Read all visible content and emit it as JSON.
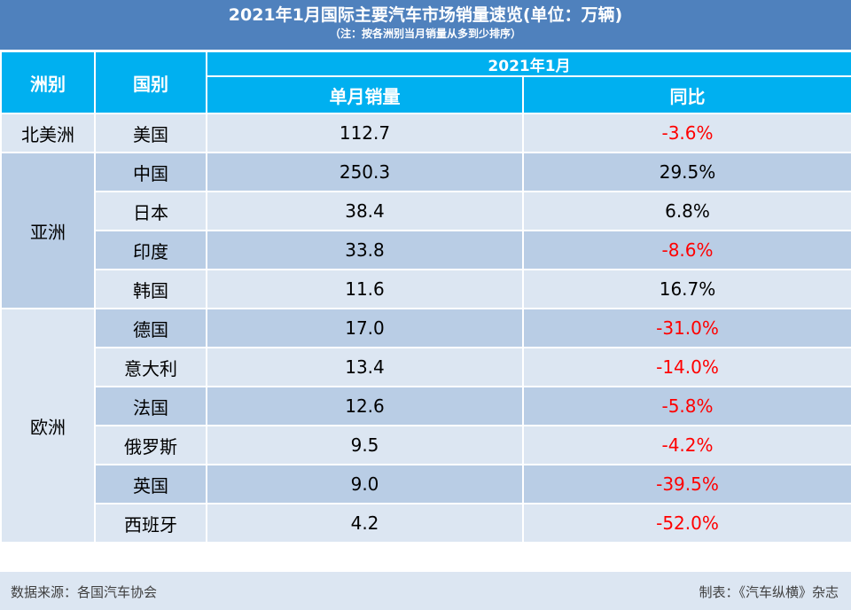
{
  "title": "2021年1月国际主要汽车市场销量速览(单位：万辆)",
  "subtitle": "（注：按各洲别当月销量从多到少排序）",
  "headers": {
    "continent": "洲别",
    "country": "国别",
    "period": "2021年1月",
    "monthly_sales": "单月销量",
    "yoy": "同比"
  },
  "groups": [
    {
      "name": "北美洲",
      "rows": [
        {
          "country": "美国",
          "sales": "112.7",
          "yoy": "-3.6%"
        }
      ]
    },
    {
      "name": "亚洲",
      "rows": [
        {
          "country": "中国",
          "sales": "250.3",
          "yoy": "29.5%"
        },
        {
          "country": "日本",
          "sales": "38.4",
          "yoy": "6.8%"
        },
        {
          "country": "印度",
          "sales": "33.8",
          "yoy": "-8.6%"
        },
        {
          "country": "韩国",
          "sales": "11.6",
          "yoy": "16.7%"
        }
      ]
    },
    {
      "name": "欧洲",
      "rows": [
        {
          "country": "德国",
          "sales": "17.0",
          "yoy": "-31.0%"
        },
        {
          "country": "意大利",
          "sales": "13.4",
          "yoy": "-14.0%"
        },
        {
          "country": "法国",
          "sales": "12.6",
          "yoy": "-5.8%"
        },
        {
          "country": "俄罗斯",
          "sales": "9.5",
          "yoy": "-4.2%"
        },
        {
          "country": "英国",
          "sales": "9.0",
          "yoy": "-39.5%"
        },
        {
          "country": "西班牙",
          "sales": "4.2",
          "yoy": "-52.0%"
        }
      ]
    }
  ],
  "footer": {
    "source": "数据来源：各国汽车协会",
    "maker": "制表：《汽车纵横》杂志"
  },
  "colors": {
    "title_band": "#4f81bd",
    "header": "#00b0f0",
    "row_light": "#dce6f2",
    "row_mid": "#b9cde5",
    "negative": "#ff0000"
  }
}
